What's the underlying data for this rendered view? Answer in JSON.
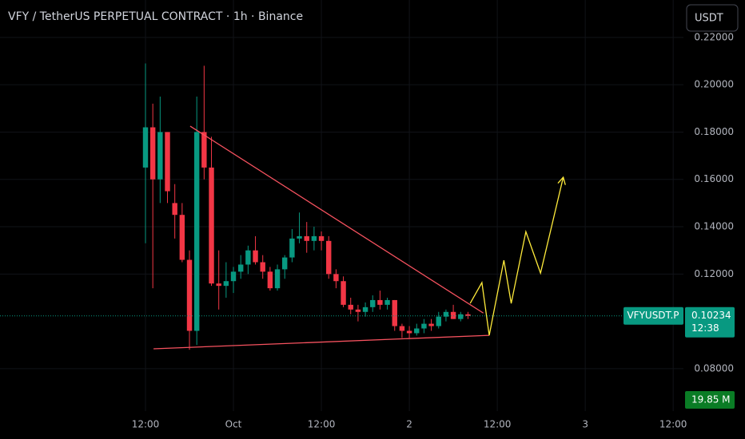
{
  "chart_data": {
    "type": "candlestick",
    "title": "VFY / TetherUS PERPETUAL CONTRACT · 1h · Binance",
    "currency_button": "USDT",
    "symbol": "VFYUSDT.P",
    "last_price": 0.10234,
    "countdown": "12:38",
    "volume_label": "19.85 M",
    "up_color": "#089981",
    "down_color": "#f23645",
    "x": [
      12,
      13,
      14,
      15,
      16,
      17,
      18,
      19,
      20,
      21,
      22,
      23,
      24,
      25,
      26,
      27,
      28,
      29,
      30,
      31,
      32,
      33,
      34,
      35,
      36,
      37,
      38,
      39,
      40,
      41,
      42,
      43,
      44,
      45,
      46,
      47,
      48,
      49,
      50,
      51,
      52,
      53,
      54,
      55,
      56
    ],
    "open": [
      0.165,
      0.182,
      0.16,
      0.18,
      0.15,
      0.145,
      0.126,
      0.096,
      0.18,
      0.165,
      0.116,
      0.115,
      0.117,
      0.121,
      0.124,
      0.13,
      0.125,
      0.121,
      0.114,
      0.122,
      0.127,
      0.135,
      0.136,
      0.134,
      0.136,
      0.134,
      0.12,
      0.117,
      0.107,
      0.105,
      0.104,
      0.106,
      0.109,
      0.107,
      0.109,
      0.098,
      0.096,
      0.095,
      0.097,
      0.099,
      0.098,
      0.102,
      0.104,
      0.101,
      0.103
    ],
    "high": [
      0.209,
      0.192,
      0.195,
      0.18,
      0.158,
      0.15,
      0.13,
      0.195,
      0.208,
      0.178,
      0.13,
      0.125,
      0.123,
      0.128,
      0.132,
      0.136,
      0.128,
      0.123,
      0.124,
      0.128,
      0.139,
      0.146,
      0.142,
      0.14,
      0.138,
      0.136,
      0.122,
      0.119,
      0.11,
      0.107,
      0.108,
      0.111,
      0.113,
      0.11,
      0.109,
      0.099,
      0.098,
      0.099,
      0.101,
      0.101,
      0.104,
      0.105,
      0.107,
      0.104,
      0.104
    ],
    "low": [
      0.133,
      0.114,
      0.15,
      0.15,
      0.135,
      0.125,
      0.088,
      0.09,
      0.16,
      0.115,
      0.105,
      0.11,
      0.112,
      0.118,
      0.12,
      0.124,
      0.118,
      0.113,
      0.113,
      0.118,
      0.125,
      0.133,
      0.129,
      0.13,
      0.13,
      0.118,
      0.114,
      0.106,
      0.103,
      0.1,
      0.102,
      0.104,
      0.105,
      0.105,
      0.096,
      0.093,
      0.093,
      0.094,
      0.095,
      0.096,
      0.097,
      0.1,
      0.101,
      0.1,
      0.101
    ],
    "close": [
      0.182,
      0.16,
      0.18,
      0.155,
      0.145,
      0.126,
      0.096,
      0.18,
      0.165,
      0.116,
      0.115,
      0.117,
      0.121,
      0.124,
      0.13,
      0.125,
      0.121,
      0.114,
      0.122,
      0.127,
      0.135,
      0.136,
      0.134,
      0.136,
      0.134,
      0.12,
      0.117,
      0.107,
      0.105,
      0.104,
      0.106,
      0.109,
      0.107,
      0.109,
      0.098,
      0.096,
      0.095,
      0.097,
      0.099,
      0.098,
      0.102,
      0.104,
      0.101,
      0.103,
      0.1023
    ],
    "xlim": [
      -7.85,
      85.4
    ],
    "xticks": [
      {
        "value": 12,
        "label": "12:00"
      },
      {
        "value": 24,
        "label": "Oct"
      },
      {
        "value": 36,
        "label": "12:00"
      },
      {
        "value": 48,
        "label": "2"
      },
      {
        "value": 60,
        "label": "12:00"
      },
      {
        "value": 72,
        "label": "3"
      },
      {
        "value": 84,
        "label": "12:00"
      }
    ],
    "ylim": [
      0.0621,
      0.2358
    ],
    "yticks": [
      {
        "value": 0.08,
        "label": "0.08000"
      },
      {
        "value": 0.12,
        "label": "0.12000"
      },
      {
        "value": 0.14,
        "label": "0.14000"
      },
      {
        "value": 0.16,
        "label": "0.16000"
      },
      {
        "value": 0.18,
        "label": "0.18000"
      },
      {
        "value": 0.2,
        "label": "0.20000"
      },
      {
        "value": 0.22,
        "label": "0.22000"
      }
    ],
    "grid": true,
    "drawings": [
      {
        "color": "#f7525f",
        "x": [
          18.1,
          58.1
        ],
        "y": [
          0.1825,
          0.1035
        ]
      },
      {
        "color": "#f7525f",
        "x": [
          13.1,
          58.9
        ],
        "y": [
          0.0884,
          0.0941
        ]
      },
      {
        "color": "#ffeb3b",
        "x": [
          56.3,
          57.9,
          58.9,
          60.9,
          61.9,
          63.9,
          65.9,
          69.0
        ],
        "y": [
          0.1076,
          0.1164,
          0.0941,
          0.1258,
          0.1076,
          0.1379,
          0.1204,
          0.1609
        ],
        "arrow": true
      }
    ]
  }
}
